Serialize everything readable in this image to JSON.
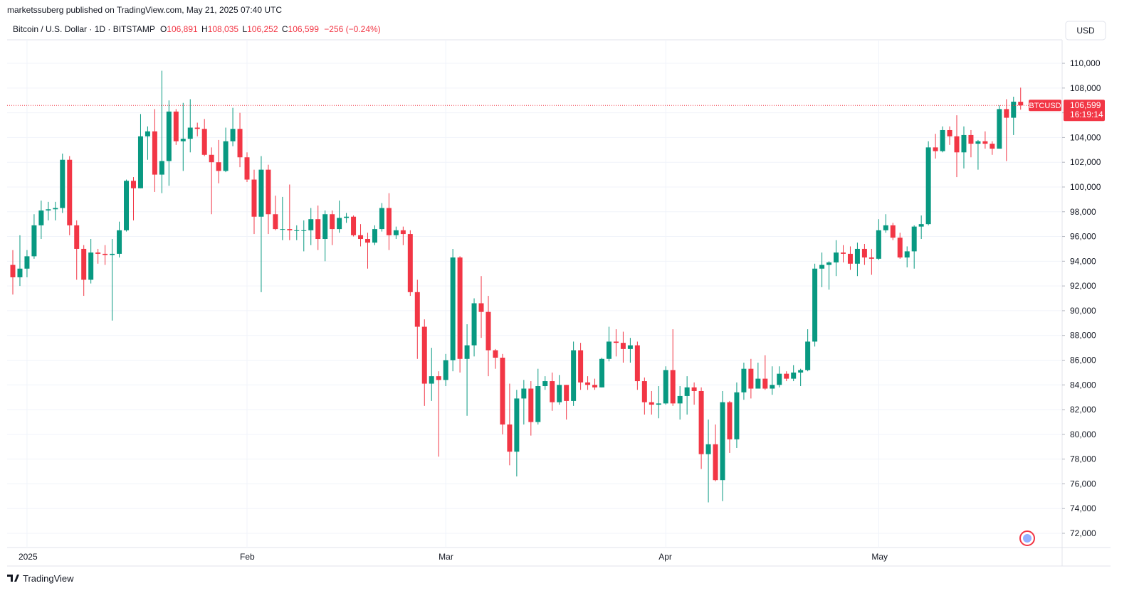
{
  "header": {
    "published": "marketssuberg published on TradingView.com, May 21, 2025 07:40 UTC",
    "symbol_title": "Bitcoin / U.S. Dollar · 1D · BITSTAMP",
    "open_prefix": "O",
    "open": "106,891",
    "high_prefix": "H",
    "high": "108,035",
    "low_prefix": "L",
    "low": "106,252",
    "close_prefix": "C",
    "close": "106,599",
    "change": "−256 (−0.24%)",
    "currency": "USD"
  },
  "footer": {
    "brand": "TradingView"
  },
  "chart_data": {
    "type": "candlestick",
    "up_color": "#089981",
    "down_color": "#f23645",
    "grid": true,
    "ylim": [
      70850,
      111900
    ],
    "yticks": [
      {
        "value": 72000,
        "label": "72,000"
      },
      {
        "value": 74000,
        "label": "74,000"
      },
      {
        "value": 76000,
        "label": "76,000"
      },
      {
        "value": 78000,
        "label": "78,000"
      },
      {
        "value": 80000,
        "label": "80,000"
      },
      {
        "value": 82000,
        "label": "82,000"
      },
      {
        "value": 84000,
        "label": "84,000"
      },
      {
        "value": 86000,
        "label": "86,000"
      },
      {
        "value": 88000,
        "label": "88,000"
      },
      {
        "value": 90000,
        "label": "90,000"
      },
      {
        "value": 92000,
        "label": "92,000"
      },
      {
        "value": 94000,
        "label": "94,000"
      },
      {
        "value": 96000,
        "label": "96,000"
      },
      {
        "value": 98000,
        "label": "98,000"
      },
      {
        "value": 100000,
        "label": "100,000"
      },
      {
        "value": 102000,
        "label": "102,000"
      },
      {
        "value": 104000,
        "label": "104,000"
      },
      {
        "value": 106000,
        "label": "106,000"
      },
      {
        "value": 108000,
        "label": "108,000"
      },
      {
        "value": 110000,
        "label": "110,000"
      }
    ],
    "last_price": {
      "value": 106599,
      "label": "106,599"
    },
    "symbol": "BTCUSD",
    "countdown": "16:19:14",
    "categories": [
      null,
      null,
      "2025",
      null,
      null,
      null,
      null,
      null,
      null,
      null,
      null,
      null,
      null,
      null,
      null,
      null,
      null,
      null,
      null,
      null,
      null,
      null,
      null,
      null,
      null,
      null,
      null,
      null,
      null,
      null,
      null,
      null,
      null,
      "Feb",
      null,
      null,
      null,
      null,
      null,
      null,
      null,
      null,
      null,
      null,
      null,
      null,
      null,
      null,
      null,
      null,
      null,
      null,
      null,
      null,
      null,
      null,
      null,
      null,
      null,
      null,
      null,
      "Mar",
      null,
      null,
      null,
      null,
      null,
      null,
      null,
      null,
      null,
      null,
      null,
      null,
      null,
      null,
      null,
      null,
      null,
      null,
      null,
      null,
      null,
      null,
      null,
      null,
      null,
      null,
      null,
      null,
      null,
      null,
      "Apr",
      null,
      null,
      null,
      null,
      null,
      null,
      null,
      null,
      null,
      null,
      null,
      null,
      null,
      null,
      null,
      null,
      null,
      null,
      null,
      null,
      null,
      null,
      null,
      null,
      null,
      null,
      null,
      null,
      null,
      "May",
      null,
      null,
      null,
      null,
      null,
      null,
      null,
      null,
      null,
      null,
      null,
      null,
      null,
      null,
      null,
      null,
      null,
      null,
      null,
      null
    ],
    "candles": [
      {
        "o": 93700,
        "h": 94900,
        "l": 91300,
        "c": 92700
      },
      {
        "o": 92700,
        "h": 96100,
        "l": 92000,
        "c": 93400
      },
      {
        "o": 93400,
        "h": 94900,
        "l": 92700,
        "c": 94400
      },
      {
        "o": 94400,
        "h": 97800,
        "l": 94200,
        "c": 96900
      },
      {
        "o": 96900,
        "h": 98900,
        "l": 95800,
        "c": 98100
      },
      {
        "o": 98100,
        "h": 98800,
        "l": 97300,
        "c": 98200
      },
      {
        "o": 98200,
        "h": 98800,
        "l": 97300,
        "c": 98300
      },
      {
        "o": 98300,
        "h": 102700,
        "l": 97900,
        "c": 102200
      },
      {
        "o": 102200,
        "h": 102500,
        "l": 96100,
        "c": 96900
      },
      {
        "o": 96900,
        "h": 97300,
        "l": 92500,
        "c": 95000
      },
      {
        "o": 95000,
        "h": 95300,
        "l": 91200,
        "c": 92500
      },
      {
        "o": 92500,
        "h": 95800,
        "l": 92200,
        "c": 94700
      },
      {
        "o": 94700,
        "h": 95000,
        "l": 93800,
        "c": 94600
      },
      {
        "o": 94600,
        "h": 95300,
        "l": 93700,
        "c": 94500
      },
      {
        "o": 94500,
        "h": 95800,
        "l": 89200,
        "c": 94600
      },
      {
        "o": 94600,
        "h": 97200,
        "l": 94300,
        "c": 96500
      },
      {
        "o": 96500,
        "h": 100600,
        "l": 96400,
        "c": 100500
      },
      {
        "o": 100500,
        "h": 100800,
        "l": 97300,
        "c": 99900
      },
      {
        "o": 99900,
        "h": 105900,
        "l": 99900,
        "c": 104100
      },
      {
        "o": 104100,
        "h": 104900,
        "l": 102200,
        "c": 104500
      },
      {
        "o": 104500,
        "h": 106300,
        "l": 99600,
        "c": 101000
      },
      {
        "o": 101000,
        "h": 109400,
        "l": 99500,
        "c": 102100
      },
      {
        "o": 102100,
        "h": 107000,
        "l": 100100,
        "c": 106100
      },
      {
        "o": 106100,
        "h": 106300,
        "l": 103400,
        "c": 103700
      },
      {
        "o": 103700,
        "h": 106800,
        "l": 101300,
        "c": 103900
      },
      {
        "o": 103900,
        "h": 107100,
        "l": 102800,
        "c": 104800
      },
      {
        "o": 104800,
        "h": 105200,
        "l": 104100,
        "c": 104700
      },
      {
        "o": 104700,
        "h": 105500,
        "l": 102500,
        "c": 102600
      },
      {
        "o": 102600,
        "h": 103200,
        "l": 97800,
        "c": 102000
      },
      {
        "o": 102000,
        "h": 103800,
        "l": 100300,
        "c": 101300
      },
      {
        "o": 101300,
        "h": 104800,
        "l": 101200,
        "c": 103700
      },
      {
        "o": 103700,
        "h": 106400,
        "l": 103300,
        "c": 104700
      },
      {
        "o": 104700,
        "h": 106000,
        "l": 101600,
        "c": 102400
      },
      {
        "o": 102400,
        "h": 102800,
        "l": 100400,
        "c": 100600
      },
      {
        "o": 100600,
        "h": 101400,
        "l": 96200,
        "c": 97600
      },
      {
        "o": 97600,
        "h": 102500,
        "l": 91500,
        "c": 101400
      },
      {
        "o": 101400,
        "h": 101800,
        "l": 96200,
        "c": 97800
      },
      {
        "o": 97800,
        "h": 99300,
        "l": 96500,
        "c": 96600
      },
      {
        "o": 96600,
        "h": 99200,
        "l": 95700,
        "c": 96600
      },
      {
        "o": 96600,
        "h": 100200,
        "l": 95700,
        "c": 96500
      },
      {
        "o": 96500,
        "h": 96900,
        "l": 95700,
        "c": 96500
      },
      {
        "o": 96500,
        "h": 97300,
        "l": 94800,
        "c": 96500
      },
      {
        "o": 96500,
        "h": 98300,
        "l": 95300,
        "c": 97400
      },
      {
        "o": 97400,
        "h": 98500,
        "l": 94900,
        "c": 95800
      },
      {
        "o": 95800,
        "h": 98100,
        "l": 94000,
        "c": 97800
      },
      {
        "o": 97800,
        "h": 98100,
        "l": 95300,
        "c": 96600
      },
      {
        "o": 96600,
        "h": 98900,
        "l": 96300,
        "c": 97500
      },
      {
        "o": 97500,
        "h": 97900,
        "l": 97100,
        "c": 97600
      },
      {
        "o": 97600,
        "h": 97700,
        "l": 96000,
        "c": 96100
      },
      {
        "o": 96100,
        "h": 97000,
        "l": 95200,
        "c": 95800
      },
      {
        "o": 95800,
        "h": 96300,
        "l": 93400,
        "c": 95500
      },
      {
        "o": 95500,
        "h": 96900,
        "l": 95300,
        "c": 96600
      },
      {
        "o": 96600,
        "h": 98700,
        "l": 96400,
        "c": 98300
      },
      {
        "o": 98300,
        "h": 99500,
        "l": 94900,
        "c": 96100
      },
      {
        "o": 96100,
        "h": 96800,
        "l": 95800,
        "c": 96500
      },
      {
        "o": 96500,
        "h": 96800,
        "l": 95300,
        "c": 96200
      },
      {
        "o": 96200,
        "h": 96500,
        "l": 91200,
        "c": 91500
      },
      {
        "o": 91500,
        "h": 92500,
        "l": 86100,
        "c": 88700
      },
      {
        "o": 88700,
        "h": 89300,
        "l": 82300,
        "c": 84100
      },
      {
        "o": 84100,
        "h": 87000,
        "l": 82700,
        "c": 84700
      },
      {
        "o": 84700,
        "h": 85100,
        "l": 78200,
        "c": 84400
      },
      {
        "o": 84400,
        "h": 86500,
        "l": 83900,
        "c": 86000
      },
      {
        "o": 86000,
        "h": 95000,
        "l": 85100,
        "c": 94300
      },
      {
        "o": 94300,
        "h": 94400,
        "l": 85000,
        "c": 86100
      },
      {
        "o": 86100,
        "h": 88900,
        "l": 81500,
        "c": 87200
      },
      {
        "o": 87200,
        "h": 91000,
        "l": 86300,
        "c": 90600
      },
      {
        "o": 90600,
        "h": 92800,
        "l": 87800,
        "c": 89900
      },
      {
        "o": 89900,
        "h": 91200,
        "l": 84700,
        "c": 86800
      },
      {
        "o": 86800,
        "h": 86900,
        "l": 85300,
        "c": 86200
      },
      {
        "o": 86200,
        "h": 86500,
        "l": 80000,
        "c": 80800
      },
      {
        "o": 80800,
        "h": 84100,
        "l": 77500,
        "c": 78600
      },
      {
        "o": 78600,
        "h": 83600,
        "l": 76600,
        "c": 82900
      },
      {
        "o": 82900,
        "h": 84400,
        "l": 80800,
        "c": 83700
      },
      {
        "o": 83700,
        "h": 84300,
        "l": 79900,
        "c": 81000
      },
      {
        "o": 81000,
        "h": 85300,
        "l": 80800,
        "c": 83900
      },
      {
        "o": 83900,
        "h": 84700,
        "l": 83600,
        "c": 84300
      },
      {
        "o": 84300,
        "h": 85000,
        "l": 81900,
        "c": 82600
      },
      {
        "o": 82600,
        "h": 84800,
        "l": 82400,
        "c": 84000
      },
      {
        "o": 84000,
        "h": 84000,
        "l": 81200,
        "c": 82700
      },
      {
        "o": 82700,
        "h": 87500,
        "l": 82300,
        "c": 86800
      },
      {
        "o": 86800,
        "h": 87400,
        "l": 83600,
        "c": 84200
      },
      {
        "o": 84200,
        "h": 84700,
        "l": 83600,
        "c": 84000
      },
      {
        "o": 84000,
        "h": 84500,
        "l": 83600,
        "c": 83800
      },
      {
        "o": 83800,
        "h": 86200,
        "l": 83800,
        "c": 86100
      },
      {
        "o": 86100,
        "h": 88700,
        "l": 85900,
        "c": 87500
      },
      {
        "o": 87500,
        "h": 88500,
        "l": 86300,
        "c": 87400
      },
      {
        "o": 87400,
        "h": 88300,
        "l": 85800,
        "c": 86900
      },
      {
        "o": 86900,
        "h": 87800,
        "l": 85800,
        "c": 87200
      },
      {
        "o": 87200,
        "h": 87500,
        "l": 83600,
        "c": 84300
      },
      {
        "o": 84300,
        "h": 84600,
        "l": 81600,
        "c": 82600
      },
      {
        "o": 82600,
        "h": 83500,
        "l": 81600,
        "c": 82400
      },
      {
        "o": 82400,
        "h": 83900,
        "l": 81300,
        "c": 82500
      },
      {
        "o": 82500,
        "h": 85500,
        "l": 82400,
        "c": 85200
      },
      {
        "o": 85200,
        "h": 88500,
        "l": 82300,
        "c": 82500
      },
      {
        "o": 82500,
        "h": 83900,
        "l": 81200,
        "c": 83100
      },
      {
        "o": 83100,
        "h": 84700,
        "l": 81600,
        "c": 83800
      },
      {
        "o": 83800,
        "h": 84200,
        "l": 82400,
        "c": 83500
      },
      {
        "o": 83500,
        "h": 83800,
        "l": 77200,
        "c": 78400
      },
      {
        "o": 78400,
        "h": 81200,
        "l": 74500,
        "c": 79200
      },
      {
        "o": 79200,
        "h": 80800,
        "l": 76200,
        "c": 76300
      },
      {
        "o": 76300,
        "h": 83500,
        "l": 74600,
        "c": 82600
      },
      {
        "o": 82600,
        "h": 82700,
        "l": 78500,
        "c": 79600
      },
      {
        "o": 79600,
        "h": 84200,
        "l": 78900,
        "c": 83400
      },
      {
        "o": 83400,
        "h": 85800,
        "l": 82800,
        "c": 85300
      },
      {
        "o": 85300,
        "h": 86100,
        "l": 82900,
        "c": 83700
      },
      {
        "o": 83700,
        "h": 85800,
        "l": 83700,
        "c": 84500
      },
      {
        "o": 84500,
        "h": 86400,
        "l": 83600,
        "c": 83700
      },
      {
        "o": 83700,
        "h": 85500,
        "l": 83200,
        "c": 84000
      },
      {
        "o": 84000,
        "h": 85500,
        "l": 83800,
        "c": 84900
      },
      {
        "o": 84900,
        "h": 85100,
        "l": 84300,
        "c": 84500
      },
      {
        "o": 84500,
        "h": 85600,
        "l": 84300,
        "c": 85000
      },
      {
        "o": 85000,
        "h": 85300,
        "l": 83900,
        "c": 85200
      },
      {
        "o": 85200,
        "h": 88500,
        "l": 85100,
        "c": 87500
      },
      {
        "o": 87500,
        "h": 93800,
        "l": 87100,
        "c": 93400
      },
      {
        "o": 93400,
        "h": 94700,
        "l": 91900,
        "c": 93700
      },
      {
        "o": 93700,
        "h": 94000,
        "l": 91700,
        "c": 93900
      },
      {
        "o": 93900,
        "h": 95700,
        "l": 92800,
        "c": 94700
      },
      {
        "o": 94700,
        "h": 95300,
        "l": 93900,
        "c": 94600
      },
      {
        "o": 94600,
        "h": 95200,
        "l": 93300,
        "c": 93800
      },
      {
        "o": 93800,
        "h": 95500,
        "l": 92800,
        "c": 95000
      },
      {
        "o": 95000,
        "h": 95400,
        "l": 93700,
        "c": 94300
      },
      {
        "o": 94300,
        "h": 95000,
        "l": 92900,
        "c": 94200
      },
      {
        "o": 94200,
        "h": 97400,
        "l": 94100,
        "c": 96500
      },
      {
        "o": 96500,
        "h": 97800,
        "l": 96300,
        "c": 96900
      },
      {
        "o": 96900,
        "h": 97100,
        "l": 95700,
        "c": 95900
      },
      {
        "o": 95900,
        "h": 96300,
        "l": 94200,
        "c": 94300
      },
      {
        "o": 94300,
        "h": 95200,
        "l": 93500,
        "c": 94800
      },
      {
        "o": 94800,
        "h": 96900,
        "l": 93400,
        "c": 96800
      },
      {
        "o": 96800,
        "h": 97700,
        "l": 95800,
        "c": 97000
      },
      {
        "o": 97000,
        "h": 103700,
        "l": 96900,
        "c": 103200
      },
      {
        "o": 103200,
        "h": 104300,
        "l": 102300,
        "c": 102900
      },
      {
        "o": 102900,
        "h": 104900,
        "l": 102800,
        "c": 104600
      },
      {
        "o": 104600,
        "h": 104900,
        "l": 103400,
        "c": 104100
      },
      {
        "o": 104100,
        "h": 105800,
        "l": 100800,
        "c": 102800
      },
      {
        "o": 102800,
        "h": 104900,
        "l": 101500,
        "c": 104200
      },
      {
        "o": 104200,
        "h": 104600,
        "l": 102400,
        "c": 103500
      },
      {
        "o": 103500,
        "h": 103800,
        "l": 101400,
        "c": 103700
      },
      {
        "o": 103700,
        "h": 104500,
        "l": 103100,
        "c": 103500
      },
      {
        "o": 103500,
        "h": 103700,
        "l": 102600,
        "c": 103100
      },
      {
        "o": 103100,
        "h": 106600,
        "l": 103100,
        "c": 106300
      },
      {
        "o": 106300,
        "h": 107100,
        "l": 102100,
        "c": 105600
      },
      {
        "o": 105600,
        "h": 107300,
        "l": 104200,
        "c": 106900
      },
      {
        "o": 106891,
        "h": 108035,
        "l": 106252,
        "c": 106599
      }
    ]
  }
}
